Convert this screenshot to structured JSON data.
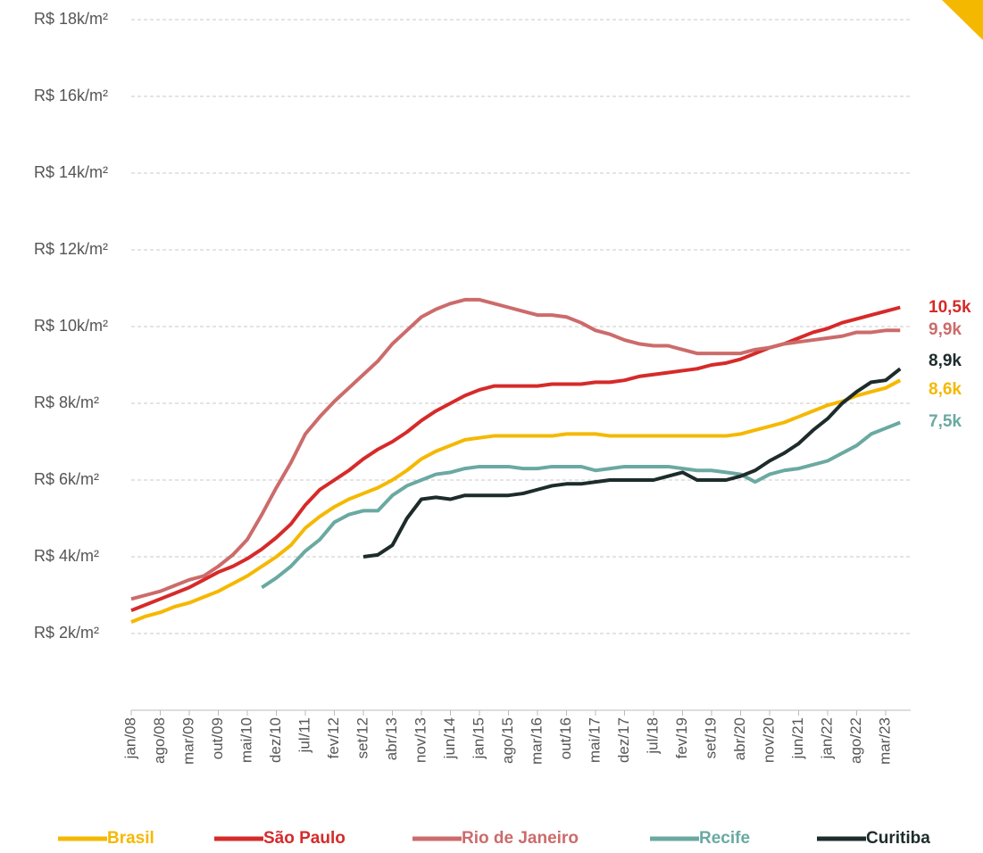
{
  "chart_data": {
    "type": "line",
    "categories": [
      "jan/08",
      null,
      "ago/08",
      null,
      "mar/09",
      null,
      "out/09",
      null,
      "mai/10",
      null,
      "dez/10",
      null,
      "jul/11",
      null,
      "fev/12",
      null,
      "set/12",
      null,
      "abr/13",
      null,
      "nov/13",
      null,
      "jun/14",
      null,
      "jan/15",
      null,
      "ago/15",
      null,
      "mar/16",
      null,
      "out/16",
      null,
      "mai/17",
      null,
      "dez/17",
      null,
      "jul/18",
      null,
      "fev/19",
      null,
      "set/19",
      null,
      "abr/20",
      null,
      "nov/20",
      null,
      "jun/21",
      null,
      "jan/22",
      null,
      "ago/22",
      null,
      "mar/23",
      null
    ],
    "ylim": [
      0,
      18000
    ],
    "yticks": [
      {
        "value": 2000,
        "label": "R$ 2k/m²"
      },
      {
        "value": 4000,
        "label": "R$ 4k/m²"
      },
      {
        "value": 6000,
        "label": "R$ 6k/m²"
      },
      {
        "value": 8000,
        "label": "R$ 8k/m²"
      },
      {
        "value": 10000,
        "label": "R$ 10k/m²"
      },
      {
        "value": 12000,
        "label": "R$ 12k/m²"
      },
      {
        "value": 14000,
        "label": "R$ 14k/m²"
      },
      {
        "value": 16000,
        "label": "R$ 16k/m²"
      },
      {
        "value": 18000,
        "label": "R$ 18k/m²"
      }
    ],
    "grid": true,
    "legend": "bottom",
    "series": [
      {
        "name": "Brasil",
        "color": "#f5b800",
        "end_label": "8,6k",
        "values": [
          2300,
          2450,
          2550,
          2700,
          2800,
          2950,
          3100,
          3300,
          3500,
          3750,
          4000,
          4300,
          4750,
          5050,
          5300,
          5500,
          5650,
          5800,
          6000,
          6250,
          6550,
          6750,
          6900,
          7050,
          7100,
          7150,
          7150,
          7150,
          7150,
          7150,
          7200,
          7200,
          7200,
          7150,
          7150,
          7150,
          7150,
          7150,
          7150,
          7150,
          7150,
          7150,
          7200,
          7300,
          7400,
          7500,
          7650,
          7800,
          7950,
          8050,
          8200,
          8300,
          8400,
          8600
        ]
      },
      {
        "name": "São Paulo",
        "color": "#d62a2a",
        "end_label": "10,5k",
        "values": [
          2600,
          2750,
          2900,
          3050,
          3200,
          3400,
          3600,
          3750,
          3950,
          4200,
          4500,
          4850,
          5350,
          5750,
          6000,
          6250,
          6550,
          6800,
          7000,
          7250,
          7550,
          7800,
          8000,
          8200,
          8350,
          8450,
          8450,
          8450,
          8450,
          8500,
          8500,
          8500,
          8550,
          8550,
          8600,
          8700,
          8750,
          8800,
          8850,
          8900,
          9000,
          9050,
          9150,
          9300,
          9450,
          9550,
          9700,
          9850,
          9950,
          10100,
          10200,
          10300,
          10400,
          10500
        ]
      },
      {
        "name": "Rio de Janeiro",
        "color": "#cc6b6b",
        "end_label": "9,9k",
        "values": [
          2900,
          3000,
          3100,
          3250,
          3400,
          3500,
          3750,
          4050,
          4450,
          5100,
          5800,
          6450,
          7200,
          7650,
          8050,
          8400,
          8750,
          9100,
          9550,
          9900,
          10250,
          10450,
          10600,
          10700,
          10700,
          10600,
          10500,
          10400,
          10300,
          10300,
          10250,
          10100,
          9900,
          9800,
          9650,
          9550,
          9500,
          9500,
          9400,
          9300,
          9300,
          9300,
          9300,
          9400,
          9450,
          9550,
          9600,
          9650,
          9700,
          9750,
          9850,
          9850,
          9900,
          9900
        ]
      },
      {
        "name": "Recife",
        "color": "#6aa9a2",
        "end_label": "7,5k",
        "values": [
          null,
          null,
          null,
          null,
          null,
          null,
          null,
          null,
          null,
          3200,
          3450,
          3750,
          4150,
          4450,
          4900,
          5100,
          5200,
          5200,
          5600,
          5850,
          6000,
          6150,
          6200,
          6300,
          6350,
          6350,
          6350,
          6300,
          6300,
          6350,
          6350,
          6350,
          6250,
          6300,
          6350,
          6350,
          6350,
          6350,
          6300,
          6250,
          6250,
          6200,
          6150,
          5950,
          6150,
          6250,
          6300,
          6400,
          6500,
          6700,
          6900,
          7200,
          7350,
          7500
        ]
      },
      {
        "name": "Curitiba",
        "color": "#1d2b2b",
        "end_label": "8,9k",
        "values": [
          null,
          null,
          null,
          null,
          null,
          null,
          null,
          null,
          null,
          null,
          null,
          null,
          null,
          null,
          null,
          null,
          4000,
          4050,
          4300,
          5000,
          5500,
          5550,
          5500,
          5600,
          5600,
          5600,
          5600,
          5650,
          5750,
          5850,
          5900,
          5900,
          5950,
          6000,
          6000,
          6000,
          6000,
          6100,
          6200,
          6000,
          6000,
          6000,
          6100,
          6250,
          6500,
          6700,
          6950,
          7300,
          7600,
          8000,
          8300,
          8550,
          8600,
          8900
        ]
      }
    ]
  }
}
